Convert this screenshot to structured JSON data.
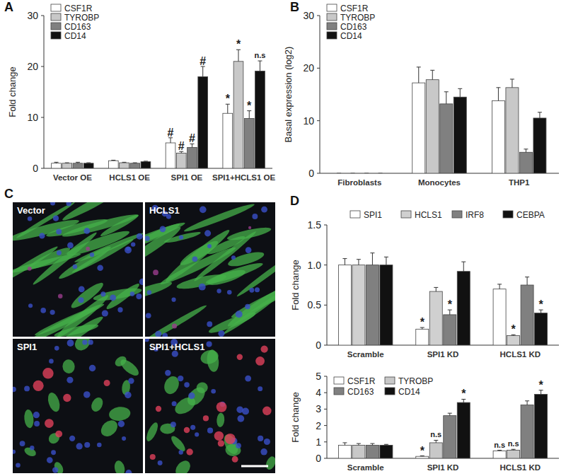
{
  "chart_data": [
    {
      "type": "bar",
      "title": "A",
      "y_label": "Fold change",
      "categories": [
        "Vector OE",
        "HCLS1 OE",
        "SPI1 OE",
        "SPI1+HCLS1 OE"
      ],
      "ylim": [
        0,
        30
      ],
      "yticks": [
        0,
        10,
        20,
        30
      ],
      "grid": false,
      "legend": "top-left",
      "series": [
        {
          "name": "CSF1R",
          "color": "#ffffff",
          "values": [
            1,
            1.5,
            5,
            10.8
          ],
          "errors": [
            0.2,
            0.1,
            1.0,
            1.8
          ],
          "annotations": [
            null,
            null,
            "#",
            "*"
          ]
        },
        {
          "name": "TYROBP",
          "color": "#c8c8c8",
          "values": [
            1,
            1.1,
            3,
            21
          ],
          "errors": [
            0.1,
            0.1,
            0.3,
            2.3
          ],
          "annotations": [
            null,
            null,
            "#",
            "*"
          ]
        },
        {
          "name": "CD163",
          "color": "#808080",
          "values": [
            1,
            1.0,
            4.1,
            9.8
          ],
          "errors": [
            0.2,
            0.1,
            0.7,
            1.5
          ],
          "annotations": [
            null,
            null,
            "#",
            "*"
          ]
        },
        {
          "name": "CD14",
          "color": "#111111",
          "values": [
            1,
            1.3,
            18,
            19.1
          ],
          "errors": [
            0.1,
            0.1,
            2.0,
            2.0
          ],
          "annotations": [
            null,
            null,
            "#",
            "n.s"
          ]
        }
      ]
    },
    {
      "type": "bar",
      "title": "B",
      "y_label": "Basal expression (log2)",
      "categories": [
        "Fibroblasts",
        "Monocytes",
        "THP1"
      ],
      "ylim": [
        0,
        30
      ],
      "yticks": [
        0,
        10,
        20,
        30
      ],
      "grid": false,
      "legend": "top-left",
      "series": [
        {
          "name": "CSF1R",
          "color": "#ffffff",
          "values": [
            0,
            17.2,
            13.8
          ],
          "errors": [
            0,
            3.0,
            2.5
          ]
        },
        {
          "name": "TYROBP",
          "color": "#c8c8c8",
          "values": [
            0,
            17.8,
            16.3
          ],
          "errors": [
            0,
            1.8,
            1.6
          ]
        },
        {
          "name": "CD163",
          "color": "#808080",
          "values": [
            0,
            13.2,
            4.0
          ],
          "errors": [
            0,
            2.3,
            0.6
          ]
        },
        {
          "name": "CD14",
          "color": "#111111",
          "values": [
            0,
            14.5,
            10.5
          ],
          "errors": [
            0,
            1.6,
            1.1
          ]
        }
      ]
    },
    {
      "type": "bar",
      "title": "D",
      "y_label": "Fold change",
      "categories": [
        "Scramble",
        "SPI1 KD",
        "HCLS1 KD"
      ],
      "ylim": [
        0,
        1.5
      ],
      "yticks": [
        0,
        0.5,
        {
          "value": 1,
          "label": "1.0"
        },
        1.5
      ],
      "grid": false,
      "legend": "top",
      "series": [
        {
          "name": "SPI1",
          "color": "#ffffff",
          "values": [
            1.0,
            0.2,
            0.7
          ],
          "errors": [
            0.08,
            0.02,
            0.06
          ],
          "annotations": [
            null,
            "*",
            null
          ]
        },
        {
          "name": "HCLS1",
          "color": "#d0d0d0",
          "values": [
            1.0,
            0.67,
            0.12
          ],
          "errors": [
            0.07,
            0.05,
            0.01
          ],
          "annotations": [
            null,
            null,
            "*"
          ]
        },
        {
          "name": "IRF8",
          "color": "#808080",
          "values": [
            1.0,
            0.38,
            0.75
          ],
          "errors": [
            0.15,
            0.06,
            0.1
          ],
          "annotations": [
            null,
            "*",
            null
          ]
        },
        {
          "name": "CEBPA",
          "color": "#111111",
          "values": [
            1.0,
            0.92,
            0.4
          ],
          "errors": [
            0.1,
            0.12,
            0.04
          ],
          "annotations": [
            null,
            null,
            "*"
          ]
        }
      ]
    },
    {
      "type": "bar",
      "y_label": "Fold change",
      "categories": [
        "Scramble",
        "SPI1 KD",
        "HCLS1 KD"
      ],
      "ylim": [
        0,
        5
      ],
      "yticks": [
        0,
        1,
        2,
        3,
        4,
        5
      ],
      "grid": false,
      "legend": "top-left",
      "series": [
        {
          "name": "CSF1R",
          "color": "#ffffff",
          "values": [
            0.8,
            0.12,
            0.45
          ],
          "errors": [
            0.15,
            0.03,
            0.04
          ],
          "annotations": [
            null,
            "*",
            "n.s"
          ]
        },
        {
          "name": "TYROBP",
          "color": "#c8c8c8",
          "values": [
            0.8,
            0.95,
            0.5
          ],
          "errors": [
            0.1,
            0.15,
            0.05
          ],
          "annotations": [
            null,
            "n.s",
            "n.s"
          ]
        },
        {
          "name": "CD163",
          "color": "#808080",
          "values": [
            0.8,
            2.6,
            3.25
          ],
          "errors": [
            0.1,
            0.15,
            0.25
          ],
          "annotations": [
            null,
            null,
            null
          ]
        },
        {
          "name": "CD14",
          "color": "#111111",
          "values": [
            0.8,
            3.4,
            3.9
          ],
          "errors": [
            0.05,
            0.2,
            0.25
          ],
          "annotations": [
            null,
            "*",
            "*"
          ]
        }
      ]
    }
  ],
  "image_panel": {
    "title": "C",
    "labels": [
      "Vector",
      "HCLS1",
      "SPI1",
      "SPI1+HCLS1"
    ]
  }
}
